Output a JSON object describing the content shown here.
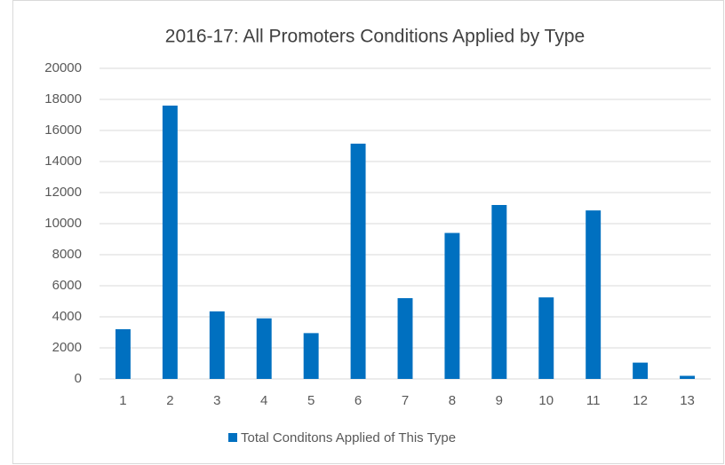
{
  "chart_data": {
    "type": "bar",
    "title": "2016-17: All Promoters Conditions Applied by Type",
    "categories": [
      "1",
      "2",
      "3",
      "4",
      "5",
      "6",
      "7",
      "8",
      "9",
      "10",
      "11",
      "12",
      "13"
    ],
    "series": [
      {
        "name": "Total Conditons Applied of This Type",
        "color": "#0070c0",
        "values": [
          3200,
          17600,
          4350,
          3900,
          2950,
          15150,
          5200,
          9400,
          11200,
          5250,
          10850,
          1050,
          200
        ]
      }
    ],
    "ylim": [
      0,
      20000
    ],
    "yticks": [
      0,
      2000,
      4000,
      6000,
      8000,
      10000,
      12000,
      14000,
      16000,
      18000,
      20000
    ],
    "grid": true,
    "legend": "bottom"
  }
}
